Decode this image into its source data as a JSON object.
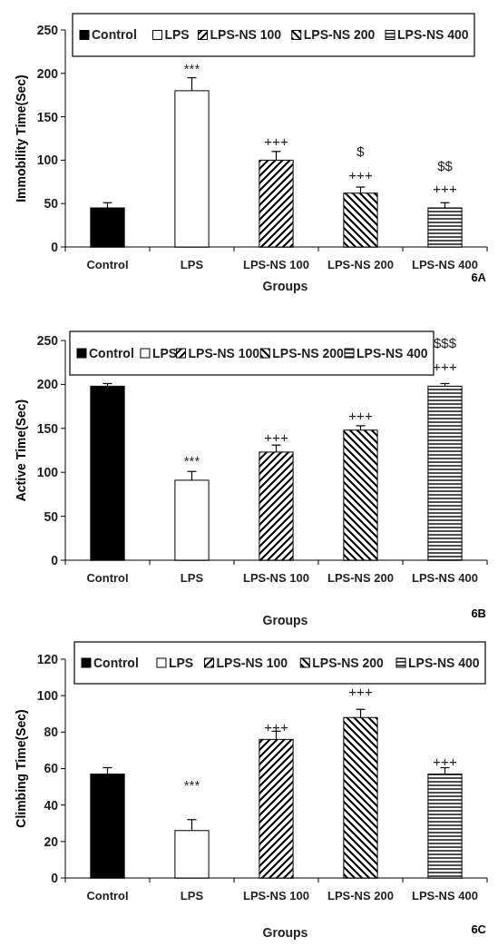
{
  "chart_data": [
    {
      "type": "bar",
      "ylabel": "Immobility Time(Sec)",
      "xlabel": "Groups",
      "categories": [
        "Control",
        "LPS",
        "LPS-NS 100",
        "LPS-NS 200",
        "LPS-NS 400"
      ],
      "series": [
        {
          "name": "Control",
          "color": "#000000",
          "values": [
            45,
            null,
            null,
            null,
            null
          ],
          "errors": [
            [
              45,
              51
            ],
            null,
            null,
            null,
            null
          ]
        },
        {
          "name": "LPS",
          "color": "#ffffff",
          "values": [
            null,
            180,
            null,
            null,
            null
          ],
          "errors": [
            null,
            [
              180,
              195
            ],
            null,
            null,
            null
          ]
        },
        {
          "name": "LPS-NS 100",
          "color": "#000000",
          "values": [
            null,
            null,
            100,
            null,
            null
          ],
          "errors": [
            null,
            null,
            [
              100,
              110
            ],
            null,
            null
          ]
        },
        {
          "name": "LPS-NS 200",
          "color": "#000000",
          "values": [
            null,
            null,
            null,
            62,
            null
          ],
          "errors": [
            null,
            null,
            null,
            [
              62,
              69
            ],
            null
          ]
        },
        {
          "name": "LPS-NS 400",
          "color": "#000000",
          "values": [
            null,
            null,
            null,
            null,
            45
          ],
          "errors": [
            null,
            null,
            null,
            null,
            [
              45,
              51
            ]
          ]
        }
      ],
      "ylim": [
        0,
        250
      ],
      "yticks": [
        0,
        50,
        100,
        150,
        200,
        250
      ],
      "legend": "top",
      "annotations": [
        "***",
        "+++",
        "$",
        "+++",
        "$$",
        "+++",
        "6A"
      ]
    },
    {
      "type": "bar",
      "ylabel": "Active Time(Sec)",
      "xlabel": "Groups",
      "categories": [
        "Control",
        "LPS",
        "LPS-NS 100",
        "LPS-NS 200",
        "LPS-NS 400"
      ],
      "series": [
        {
          "name": "Control",
          "color": "#000000",
          "values": [
            198,
            null,
            null,
            null,
            null
          ],
          "errors": [
            [
              198,
              201
            ],
            null,
            null,
            null,
            null
          ]
        },
        {
          "name": "LPS",
          "color": "#ffffff",
          "values": [
            null,
            91,
            null,
            null,
            null
          ],
          "errors": [
            null,
            [
              91,
              101
            ],
            null,
            null,
            null
          ]
        },
        {
          "name": "LPS-NS 100",
          "color": "#000000",
          "values": [
            null,
            null,
            123,
            null,
            null
          ],
          "errors": [
            null,
            null,
            [
              123,
              131
            ],
            null,
            null
          ]
        },
        {
          "name": "LPS-NS 200",
          "color": "#000000",
          "values": [
            null,
            null,
            null,
            148,
            null
          ],
          "errors": [
            null,
            null,
            null,
            [
              148,
              153
            ],
            null
          ]
        },
        {
          "name": "LPS-NS 400",
          "color": "#000000",
          "values": [
            null,
            null,
            null,
            null,
            198
          ],
          "errors": [
            null,
            null,
            null,
            null,
            [
              198,
              201
            ]
          ]
        }
      ],
      "ylim": [
        0,
        250
      ],
      "yticks": [
        0,
        50,
        100,
        150,
        200,
        250
      ],
      "legend": "top",
      "annotations": [
        "***",
        "+++",
        "+++",
        "+++",
        "$$$",
        "6B"
      ]
    },
    {
      "type": "bar",
      "ylabel": "Climbing Time(Sec)",
      "xlabel": "Groups",
      "categories": [
        "Control",
        "LPS",
        "LPS-NS 100",
        "LPS-NS 200",
        "LPS-NS 400"
      ],
      "series": [
        {
          "name": "Control",
          "color": "#000000",
          "values": [
            57,
            null,
            null,
            null,
            null
          ],
          "errors": [
            [
              57,
              60.5
            ],
            null,
            null,
            null,
            null
          ]
        },
        {
          "name": "LPS",
          "color": "#ffffff",
          "values": [
            null,
            26,
            null,
            null,
            null
          ],
          "errors": [
            null,
            [
              26,
              32
            ],
            null,
            null,
            null
          ]
        },
        {
          "name": "LPS-NS 100",
          "color": "#000000",
          "values": [
            null,
            null,
            76,
            null,
            null
          ],
          "errors": [
            null,
            null,
            [
              76,
              80.5
            ],
            null,
            null
          ]
        },
        {
          "name": "LPS-NS 200",
          "color": "#000000",
          "values": [
            null,
            null,
            null,
            88,
            null
          ],
          "errors": [
            null,
            null,
            null,
            [
              88,
              92.5
            ],
            null
          ]
        },
        {
          "name": "LPS-NS 400",
          "color": "#000000",
          "values": [
            null,
            null,
            null,
            null,
            57
          ],
          "errors": [
            null,
            null,
            null,
            null,
            [
              57,
              60.5
            ]
          ]
        }
      ],
      "ylim": [
        0,
        120
      ],
      "yticks": [
        0,
        20,
        40,
        60,
        80,
        100,
        120
      ],
      "legend": "top",
      "annotations": [
        "***",
        "+++",
        "+++",
        "+++",
        "6C"
      ]
    }
  ]
}
